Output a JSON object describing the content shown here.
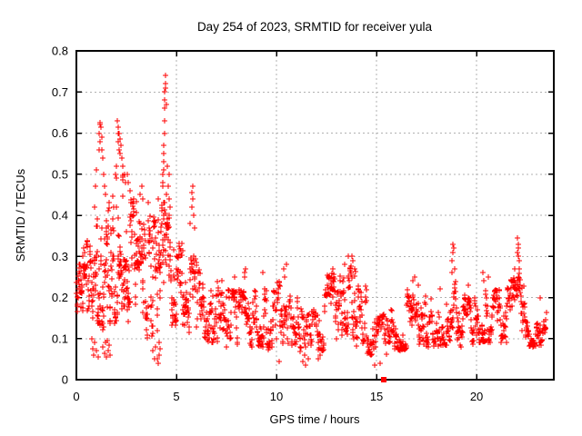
{
  "chart_data": {
    "type": "scatter",
    "title": "Day 254 of 2023, SRMTID for receiver yula",
    "xlabel": "GPS time / hours",
    "ylabel": "SRMTID / TECUs",
    "xlim": [
      0,
      23.86
    ],
    "ylim": [
      0,
      0.8
    ],
    "xticks": [
      0,
      5,
      10,
      15,
      20
    ],
    "xtick_labels": [
      "0",
      "5",
      "10",
      "15",
      "20"
    ],
    "yticks": [
      0,
      0.1,
      0.2,
      0.3,
      0.4,
      0.5,
      0.6,
      0.7,
      0.8
    ],
    "ytick_labels": [
      "0",
      "0.1",
      "0.2",
      "0.3",
      "0.4",
      "0.5",
      "0.6",
      "0.7",
      "0.8"
    ],
    "grid": true,
    "legend": "none",
    "marker": {
      "shape": "plus",
      "color": "#ff0000",
      "size": 7
    },
    "grid_color": "#b0b0b0",
    "border_color": "#000000",
    "background_color": "#ffffff",
    "special_points": [
      {
        "x": 15.36,
        "y": 0.0,
        "shape": "filled-square",
        "color": "#ff0000",
        "size": 6
      }
    ],
    "seed": 20230254,
    "point_bins_format": [
      "t_start_hours",
      "t_end_hours",
      "n_points",
      "value_min",
      "value_max"
    ],
    "point_bins": [
      [
        0.0,
        0.5,
        48,
        0.13,
        0.28
      ],
      [
        0.5,
        1.0,
        46,
        0.14,
        0.35
      ],
      [
        1.0,
        1.5,
        50,
        0.12,
        0.42
      ],
      [
        1.5,
        2.0,
        52,
        0.13,
        0.46
      ],
      [
        2.0,
        2.5,
        54,
        0.15,
        0.5
      ],
      [
        2.5,
        3.0,
        50,
        0.14,
        0.44
      ],
      [
        3.0,
        3.5,
        50,
        0.15,
        0.42
      ],
      [
        3.5,
        4.0,
        46,
        0.1,
        0.4
      ],
      [
        4.0,
        4.5,
        48,
        0.1,
        0.44
      ],
      [
        4.5,
        5.0,
        46,
        0.13,
        0.4
      ],
      [
        5.0,
        5.5,
        40,
        0.13,
        0.34
      ],
      [
        5.5,
        6.0,
        38,
        0.11,
        0.3
      ],
      [
        6.0,
        6.5,
        36,
        0.1,
        0.27
      ],
      [
        6.5,
        7.0,
        34,
        0.09,
        0.23
      ],
      [
        7.0,
        7.5,
        34,
        0.08,
        0.24
      ],
      [
        7.5,
        8.0,
        34,
        0.08,
        0.22
      ],
      [
        8.0,
        8.5,
        34,
        0.08,
        0.22
      ],
      [
        8.5,
        9.0,
        34,
        0.08,
        0.22
      ],
      [
        9.0,
        9.5,
        34,
        0.08,
        0.24
      ],
      [
        9.5,
        10.0,
        34,
        0.07,
        0.22
      ],
      [
        10.0,
        10.5,
        34,
        0.07,
        0.24
      ],
      [
        10.5,
        11.0,
        34,
        0.08,
        0.22
      ],
      [
        11.0,
        11.5,
        30,
        0.06,
        0.2
      ],
      [
        11.5,
        12.0,
        28,
        0.06,
        0.18
      ],
      [
        12.0,
        12.5,
        30,
        0.07,
        0.22
      ],
      [
        12.5,
        13.0,
        34,
        0.09,
        0.26
      ],
      [
        13.0,
        13.5,
        36,
        0.1,
        0.26
      ],
      [
        13.5,
        14.0,
        38,
        0.1,
        0.28
      ],
      [
        14.0,
        14.5,
        34,
        0.08,
        0.24
      ],
      [
        14.5,
        15.0,
        32,
        0.06,
        0.18
      ],
      [
        15.0,
        15.5,
        30,
        0.06,
        0.16
      ],
      [
        15.5,
        16.0,
        30,
        0.06,
        0.17
      ],
      [
        16.0,
        16.5,
        32,
        0.07,
        0.19
      ],
      [
        16.5,
        17.0,
        34,
        0.08,
        0.22
      ],
      [
        17.0,
        17.5,
        34,
        0.08,
        0.22
      ],
      [
        17.5,
        18.0,
        32,
        0.08,
        0.2
      ],
      [
        18.0,
        18.5,
        32,
        0.08,
        0.2
      ],
      [
        18.5,
        19.0,
        34,
        0.09,
        0.24
      ],
      [
        19.0,
        19.5,
        32,
        0.08,
        0.21
      ],
      [
        19.5,
        20.0,
        32,
        0.08,
        0.2
      ],
      [
        20.0,
        20.5,
        34,
        0.09,
        0.22
      ],
      [
        20.5,
        21.0,
        34,
        0.09,
        0.22
      ],
      [
        21.0,
        21.5,
        34,
        0.09,
        0.22
      ],
      [
        21.5,
        22.0,
        36,
        0.1,
        0.25
      ],
      [
        22.0,
        22.5,
        38,
        0.1,
        0.26
      ],
      [
        22.5,
        23.0,
        32,
        0.08,
        0.2
      ],
      [
        23.0,
        23.5,
        28,
        0.08,
        0.18
      ]
    ],
    "extra_points": [
      [
        0.3,
        0.3
      ],
      [
        0.35,
        0.32
      ],
      [
        0.42,
        0.31
      ],
      [
        0.75,
        0.1
      ],
      [
        0.8,
        0.075
      ],
      [
        0.85,
        0.06
      ],
      [
        0.9,
        0.09
      ],
      [
        1.0,
        0.07
      ],
      [
        1.1,
        0.055
      ],
      [
        0.92,
        0.42
      ],
      [
        0.96,
        0.47
      ],
      [
        0.99,
        0.51
      ],
      [
        1.12,
        0.56
      ],
      [
        1.15,
        0.6
      ],
      [
        1.17,
        0.58
      ],
      [
        1.18,
        0.62
      ],
      [
        1.2,
        0.625
      ],
      [
        1.22,
        0.615
      ],
      [
        1.25,
        0.59
      ],
      [
        1.28,
        0.56
      ],
      [
        1.3,
        0.54
      ],
      [
        1.35,
        0.5
      ],
      [
        1.4,
        0.47
      ],
      [
        1.45,
        0.45
      ],
      [
        1.3,
        0.08
      ],
      [
        1.4,
        0.065
      ],
      [
        1.45,
        0.09
      ],
      [
        1.5,
        0.055
      ],
      [
        1.55,
        0.095
      ],
      [
        1.6,
        0.07
      ],
      [
        1.65,
        0.085
      ],
      [
        1.7,
        0.06
      ],
      [
        1.95,
        0.5
      ],
      [
        1.98,
        0.52
      ],
      [
        2.05,
        0.63
      ],
      [
        2.08,
        0.6
      ],
      [
        2.1,
        0.615
      ],
      [
        2.1,
        0.58
      ],
      [
        2.13,
        0.56
      ],
      [
        2.15,
        0.6
      ],
      [
        2.18,
        0.585
      ],
      [
        2.2,
        0.55
      ],
      [
        2.22,
        0.57
      ],
      [
        2.28,
        0.54
      ],
      [
        2.33,
        0.52
      ],
      [
        2.4,
        0.5
      ],
      [
        2.45,
        0.48
      ],
      [
        2.55,
        0.5
      ],
      [
        2.6,
        0.48
      ],
      [
        2.7,
        0.46
      ],
      [
        3.2,
        0.45
      ],
      [
        3.25,
        0.47
      ],
      [
        3.3,
        0.44
      ],
      [
        3.6,
        0.43
      ],
      [
        3.8,
        0.07
      ],
      [
        3.9,
        0.05
      ],
      [
        3.95,
        0.08
      ],
      [
        4.05,
        0.05
      ],
      [
        4.1,
        0.04
      ],
      [
        4.12,
        0.09
      ],
      [
        4.15,
        0.06
      ],
      [
        4.2,
        0.075
      ],
      [
        4.3,
        0.47
      ],
      [
        4.32,
        0.5
      ],
      [
        4.33,
        0.48
      ],
      [
        4.35,
        0.55
      ],
      [
        4.35,
        0.51
      ],
      [
        4.37,
        0.53
      ],
      [
        4.38,
        0.57
      ],
      [
        4.4,
        0.6
      ],
      [
        4.4,
        0.63
      ],
      [
        4.42,
        0.66
      ],
      [
        4.42,
        0.7
      ],
      [
        4.43,
        0.68
      ],
      [
        4.45,
        0.71
      ],
      [
        4.45,
        0.74
      ],
      [
        4.47,
        0.72
      ],
      [
        4.48,
        0.67
      ],
      [
        4.5,
        0.45
      ],
      [
        4.55,
        0.52
      ],
      [
        4.6,
        0.47
      ],
      [
        4.62,
        0.44
      ],
      [
        4.65,
        0.5
      ],
      [
        4.7,
        0.42
      ],
      [
        5.7,
        0.38
      ],
      [
        5.75,
        0.42
      ],
      [
        5.78,
        0.455
      ],
      [
        5.8,
        0.47
      ],
      [
        5.82,
        0.44
      ],
      [
        5.85,
        0.4
      ],
      [
        5.9,
        0.37
      ],
      [
        7.9,
        0.25
      ],
      [
        8.4,
        0.25
      ],
      [
        8.42,
        0.26
      ],
      [
        8.45,
        0.27
      ],
      [
        9.3,
        0.26
      ],
      [
        10.15,
        0.045
      ],
      [
        10.35,
        0.27
      ],
      [
        10.4,
        0.25
      ],
      [
        10.5,
        0.28
      ],
      [
        11.3,
        0.045
      ],
      [
        11.45,
        0.035
      ],
      [
        11.6,
        0.05
      ],
      [
        12.1,
        0.05
      ],
      [
        12.2,
        0.06
      ],
      [
        12.8,
        0.27
      ],
      [
        12.85,
        0.25
      ],
      [
        13.4,
        0.28
      ],
      [
        13.6,
        0.3
      ],
      [
        13.75,
        0.3
      ],
      [
        13.8,
        0.29
      ],
      [
        13.9,
        0.27
      ],
      [
        14.9,
        0.035
      ],
      [
        15.2,
        0.04
      ],
      [
        16.8,
        0.24
      ],
      [
        16.9,
        0.25
      ],
      [
        17.1,
        0.23
      ],
      [
        18.2,
        0.22
      ],
      [
        18.75,
        0.26
      ],
      [
        18.78,
        0.29
      ],
      [
        18.8,
        0.33
      ],
      [
        18.82,
        0.31
      ],
      [
        18.85,
        0.32
      ],
      [
        18.9,
        0.27
      ],
      [
        19.6,
        0.23
      ],
      [
        20.3,
        0.26
      ],
      [
        20.35,
        0.24
      ],
      [
        20.6,
        0.25
      ],
      [
        21.9,
        0.27
      ],
      [
        22.05,
        0.345
      ],
      [
        22.05,
        0.31
      ],
      [
        22.08,
        0.32
      ],
      [
        22.1,
        0.3
      ],
      [
        22.1,
        0.33
      ],
      [
        22.12,
        0.29
      ],
      [
        22.15,
        0.27
      ],
      [
        23.2,
        0.2
      ]
    ]
  }
}
